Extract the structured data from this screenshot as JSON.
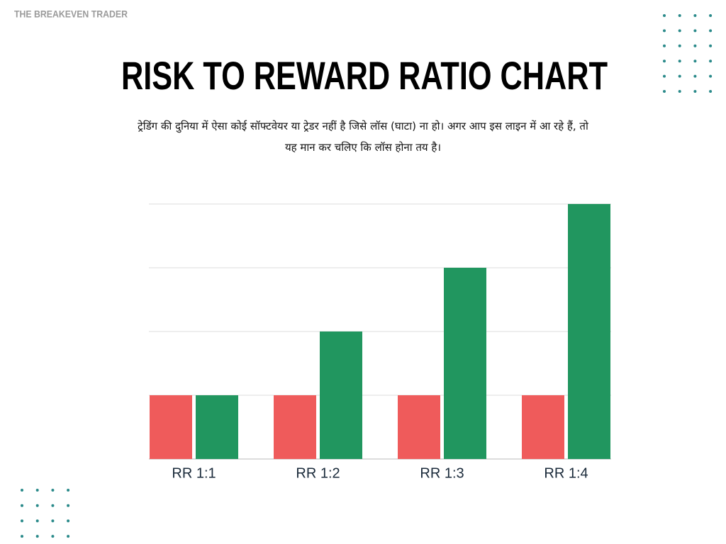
{
  "brand": "THE BREAKEVEN TRADER",
  "chart_data": {
    "type": "bar",
    "title": "RISK TO REWARD RATIO CHART",
    "subtitle": "ट्रेडिंग की दुनिया में ऐसा कोई सॉफ्टवेयर या ट्रेडर नहीं है जिसे लॉस (घाटा) ना हो। अगर आप इस लाइन में आ रहे हैं, तो यह मान कर चलिए कि लॉस होना तय है।",
    "categories": [
      "RR 1:1",
      "RR 1:2",
      "RR 1:3",
      "RR 1:4"
    ],
    "series": [
      {
        "color": "#ef5b5b",
        "values": [
          1,
          1,
          1,
          1
        ]
      },
      {
        "color": "#21965f",
        "values": [
          1,
          2,
          3,
          4
        ]
      }
    ],
    "ylim": [
      0,
      4
    ],
    "yticks": [
      0,
      1,
      2,
      3,
      4
    ],
    "grid": true
  }
}
